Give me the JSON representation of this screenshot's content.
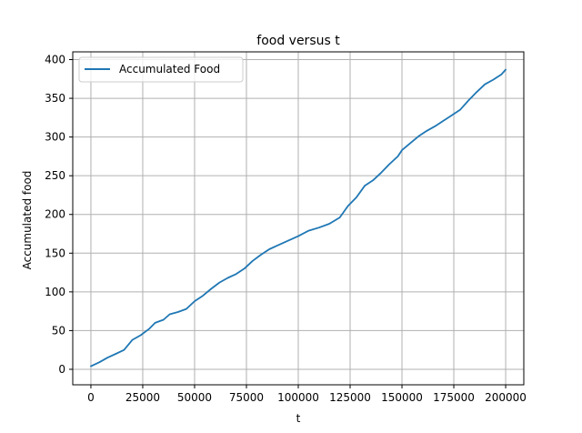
{
  "chart_data": {
    "type": "line",
    "title": "food versus t",
    "xlabel": "t",
    "ylabel": "Accumulated food",
    "xlim": [
      -8750,
      208750
    ],
    "ylim": [
      -20,
      410
    ],
    "xticks": [
      0,
      25000,
      50000,
      75000,
      100000,
      125000,
      150000,
      175000,
      200000
    ],
    "yticks": [
      0,
      50,
      100,
      150,
      200,
      250,
      300,
      350,
      400
    ],
    "grid": true,
    "legend_position": "top-left",
    "series": [
      {
        "name": "Accumulated Food",
        "color": "#1f77b4",
        "points": [
          [
            0,
            4
          ],
          [
            4000,
            9
          ],
          [
            8000,
            15
          ],
          [
            12000,
            20
          ],
          [
            16000,
            25
          ],
          [
            20000,
            38
          ],
          [
            24000,
            44
          ],
          [
            28000,
            52
          ],
          [
            31000,
            60
          ],
          [
            35000,
            64
          ],
          [
            38000,
            71
          ],
          [
            42000,
            74
          ],
          [
            46000,
            78
          ],
          [
            50000,
            88
          ],
          [
            54000,
            95
          ],
          [
            58000,
            104
          ],
          [
            62000,
            112
          ],
          [
            66000,
            118
          ],
          [
            70000,
            123
          ],
          [
            74000,
            130
          ],
          [
            78000,
            140
          ],
          [
            82000,
            148
          ],
          [
            86000,
            155
          ],
          [
            90000,
            160
          ],
          [
            95000,
            166
          ],
          [
            100000,
            172
          ],
          [
            105000,
            179
          ],
          [
            110000,
            183
          ],
          [
            115000,
            188
          ],
          [
            120000,
            196
          ],
          [
            124000,
            211
          ],
          [
            128000,
            222
          ],
          [
            132000,
            237
          ],
          [
            136000,
            244
          ],
          [
            140000,
            254
          ],
          [
            144000,
            265
          ],
          [
            148000,
            275
          ],
          [
            150000,
            283
          ],
          [
            154000,
            292
          ],
          [
            158000,
            301
          ],
          [
            162000,
            308
          ],
          [
            166000,
            314
          ],
          [
            170000,
            321
          ],
          [
            174000,
            328
          ],
          [
            178000,
            335
          ],
          [
            182000,
            347
          ],
          [
            186000,
            358
          ],
          [
            190000,
            368
          ],
          [
            194000,
            374
          ],
          [
            198000,
            381
          ],
          [
            200000,
            387
          ]
        ]
      }
    ]
  }
}
